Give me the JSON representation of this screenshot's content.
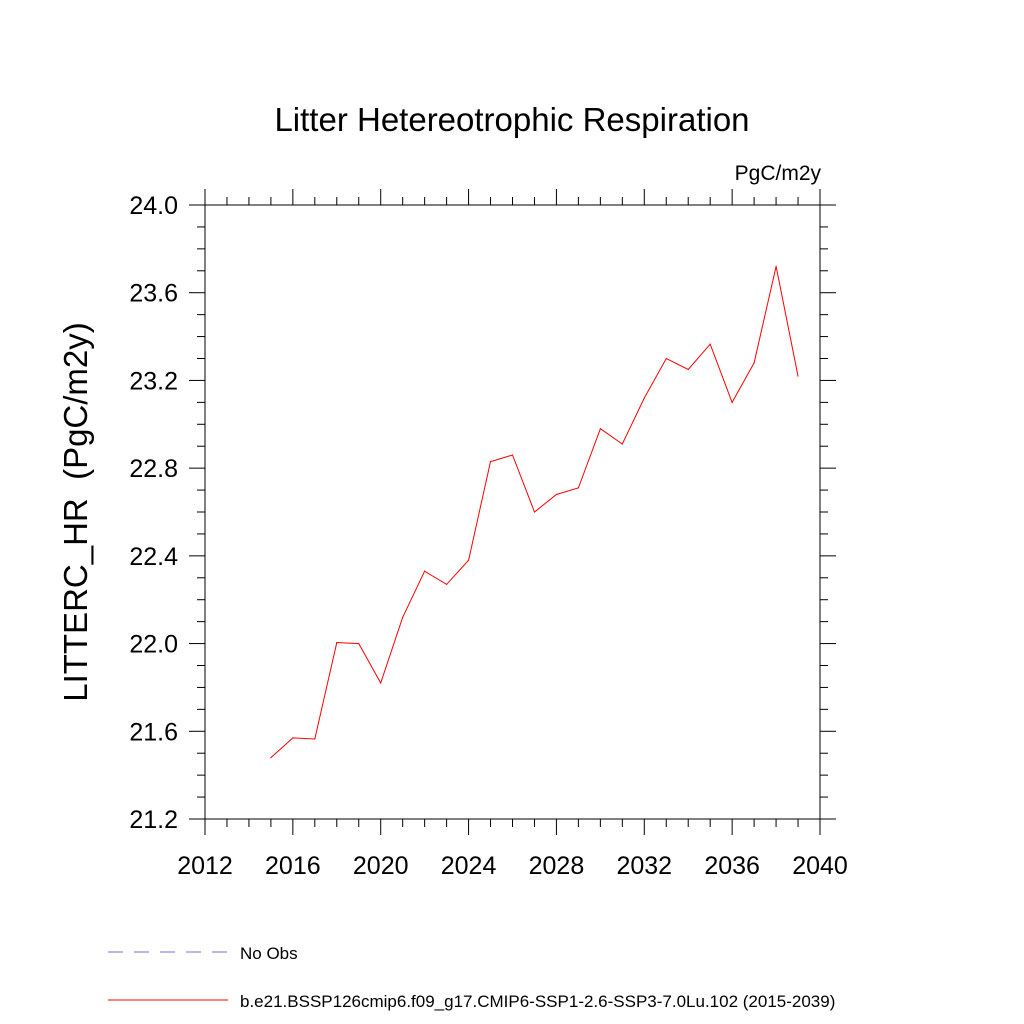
{
  "chart_data": {
    "type": "line",
    "title": "Litter Hetereotrophic Respiration",
    "units_label": "PgC/m2y",
    "ylabel": "LITTERC_HR  (PgC/m2y)",
    "xlabel": "",
    "xlim": [
      2012,
      2040
    ],
    "ylim": [
      21.2,
      24.0
    ],
    "xticks": [
      "2012",
      "2016",
      "2020",
      "2024",
      "2028",
      "2032",
      "2036",
      "2040"
    ],
    "yticks": [
      "21.2",
      "21.6",
      "22.0",
      "22.4",
      "22.8",
      "23.2",
      "23.6",
      "24.0"
    ],
    "grid": false,
    "legend_position": "bottom-left",
    "series": [
      {
        "name": "b.e21.BSSP126cmip6.f09_g17.CMIP6-SSP1-2.6-SSP3-7.0Lu.102 (2015-2039)",
        "color": "#ff0000",
        "style": "solid",
        "x": [
          2015,
          2016,
          2017,
          2018,
          2019,
          2020,
          2021,
          2022,
          2023,
          2024,
          2025,
          2026,
          2027,
          2028,
          2029,
          2030,
          2031,
          2032,
          2033,
          2034,
          2035,
          2036,
          2037,
          2038,
          2039
        ],
        "y": [
          21.48,
          21.57,
          21.565,
          22.005,
          22.0,
          21.82,
          22.12,
          22.33,
          22.27,
          22.38,
          22.83,
          22.86,
          22.6,
          22.68,
          22.71,
          22.98,
          22.91,
          23.12,
          23.3,
          23.25,
          23.365,
          23.1,
          23.28,
          23.72,
          23.22
        ]
      }
    ],
    "legend": [
      {
        "label": "No Obs",
        "color": "#7a6fc8",
        "style": "dashed"
      },
      {
        "label": "b.e21.BSSP126cmip6.f09_g17.CMIP6-SSP1-2.6-SSP3-7.0Lu.102 (2015-2039)",
        "color": "#ff0000",
        "style": "solid"
      }
    ]
  }
}
